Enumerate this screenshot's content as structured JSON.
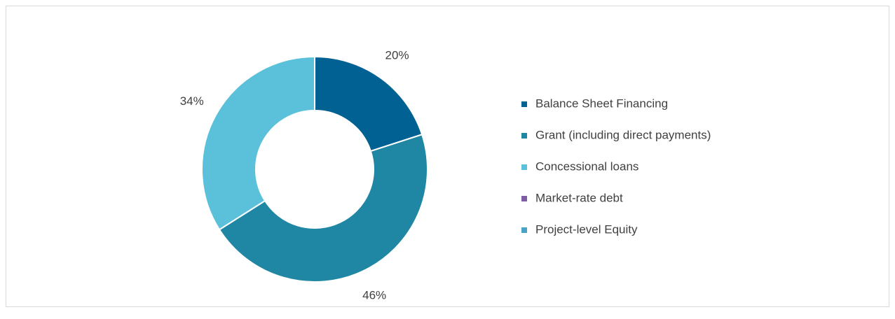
{
  "chart_data": {
    "type": "donut",
    "categories": [
      "Balance Sheet Financing",
      "Grant (including direct payments)",
      "Concessional loans",
      "Market-rate debt",
      "Project-level Equity"
    ],
    "values": [
      20,
      46,
      34,
      0,
      0
    ],
    "value_labels": [
      "20%",
      "46%",
      "34%",
      null,
      null
    ],
    "colors": [
      "#006192",
      "#1f87a3",
      "#5bc0d9",
      "#7d5ea3",
      "#4aa3c4"
    ],
    "legend": "right"
  }
}
